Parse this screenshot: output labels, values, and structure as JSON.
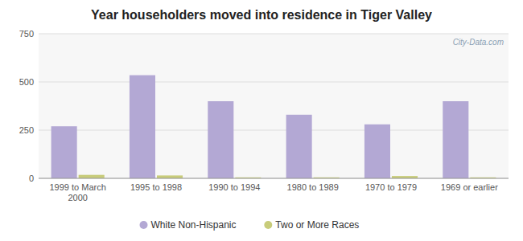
{
  "chart_data": {
    "type": "bar",
    "title": "Year householders moved into residence in Tiger Valley",
    "categories": [
      "1999 to March\n2000",
      "1995 to 1998",
      "1990 to 1994",
      "1980 to 1989",
      "1970 to 1979",
      "1969 or earlier"
    ],
    "series": [
      {
        "name": "White Non-Hispanic",
        "color": "#b3a8d4",
        "values": [
          270,
          535,
          400,
          330,
          280,
          400
        ]
      },
      {
        "name": "Two or More Races",
        "color": "#c8cc7a",
        "values": [
          18,
          15,
          5,
          5,
          12,
          5
        ]
      }
    ],
    "ylim": [
      0,
      750
    ],
    "yticks": [
      0,
      250,
      500,
      750
    ],
    "grid": true,
    "legend": "bottom",
    "annotations": [
      "City-Data.com"
    ]
  }
}
